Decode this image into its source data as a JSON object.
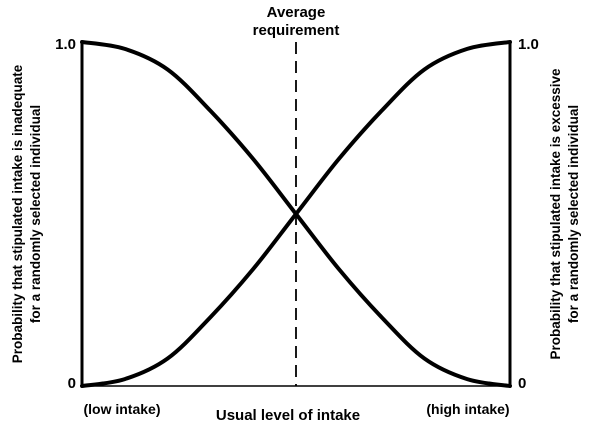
{
  "chart_data": {
    "type": "line",
    "title": "",
    "annotation": {
      "line1": "Average",
      "line2": "requirement",
      "x": 0.5,
      "style": "dashed vertical line"
    },
    "xlabel": "Usual level of intake",
    "x_tick_labels": {
      "low": "(low intake)",
      "high": "(high intake)"
    },
    "ylabel_left": {
      "line1": "Probability that stipulated intake is inadequate",
      "line2": "for a randomly selected individual"
    },
    "ylabel_right": {
      "line1": "Probability that stipulated intake is excessive",
      "line2": "for a randomly selected individual"
    },
    "y_ticks_left": [
      "0",
      "1.0"
    ],
    "y_ticks_right": [
      "0",
      "1.0"
    ],
    "xlim": [
      0,
      1
    ],
    "ylim": [
      0,
      1
    ],
    "grid": false,
    "legend": "none",
    "series": [
      {
        "x": [
          0.0,
          0.1,
          0.2,
          0.3,
          0.4,
          0.5,
          0.6,
          0.7,
          0.8,
          0.9,
          1.0
        ],
        "y": [
          1.0,
          0.98,
          0.92,
          0.8,
          0.66,
          0.5,
          0.34,
          0.2,
          0.08,
          0.02,
          0.0
        ]
      },
      {
        "x": [
          0.0,
          0.1,
          0.2,
          0.3,
          0.4,
          0.5,
          0.6,
          0.7,
          0.8,
          0.9,
          1.0
        ],
        "y": [
          0.0,
          0.02,
          0.08,
          0.2,
          0.34,
          0.5,
          0.66,
          0.8,
          0.92,
          0.98,
          1.0
        ]
      }
    ],
    "colors": {
      "line": "#000000"
    }
  }
}
